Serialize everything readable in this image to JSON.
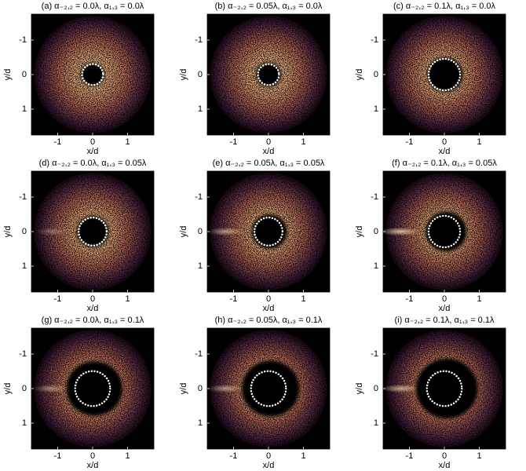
{
  "chart_data": [
    {
      "type": "image",
      "title": "(a)  α₋₂,₂ = 0.0λ, α₁,₃ = 0.0λ",
      "xlabel": "x/d",
      "ylabel": "y/d",
      "xlim": [
        -1.75,
        1.75
      ],
      "ylim": [
        -1.75,
        1.75
      ],
      "y_inverted": true,
      "xticks": [
        -1,
        0,
        1
      ],
      "yticks": [
        -1,
        0,
        1
      ]
    },
    {
      "type": "image",
      "title": "(b)  α₋₂,₂ = 0.05λ, α₁,₃ = 0.0λ",
      "xlabel": "x/d",
      "ylabel": "y/d",
      "xlim": [
        -1.75,
        1.75
      ],
      "ylim": [
        -1.75,
        1.75
      ],
      "y_inverted": true,
      "xticks": [
        -1,
        0,
        1
      ],
      "yticks": [
        -1,
        0,
        1
      ]
    },
    {
      "type": "image",
      "title": "(c)  α₋₂,₂ = 0.1λ, α₁,₃ = 0.0λ",
      "xlabel": "x/d",
      "ylabel": "y/d",
      "xlim": [
        -1.75,
        1.75
      ],
      "ylim": [
        -1.75,
        1.75
      ],
      "y_inverted": true,
      "xticks": [
        -1,
        0,
        1
      ],
      "yticks": [
        -1,
        0,
        1
      ]
    },
    {
      "type": "image",
      "title": "(d)  α₋₂,₂ = 0.0λ, α₁,₃ = 0.05λ",
      "xlabel": "x/d",
      "ylabel": "y/d",
      "xlim": [
        -1.75,
        1.75
      ],
      "ylim": [
        -1.75,
        1.75
      ],
      "y_inverted": true,
      "xticks": [
        -1,
        0,
        1
      ],
      "yticks": [
        -1,
        0,
        1
      ]
    },
    {
      "type": "image",
      "title": "(e)  α₋₂,₂ = 0.05λ, α₁,₃ = 0.05λ",
      "xlabel": "x/d",
      "ylabel": "y/d",
      "xlim": [
        -1.75,
        1.75
      ],
      "ylim": [
        -1.75,
        1.75
      ],
      "y_inverted": true,
      "xticks": [
        -1,
        0,
        1
      ],
      "yticks": [
        -1,
        0,
        1
      ]
    },
    {
      "type": "image",
      "title": "(f)  α₋₂,₂ = 0.1λ, α₁,₃ = 0.05λ",
      "xlabel": "x/d",
      "ylabel": "y/d",
      "xlim": [
        -1.75,
        1.75
      ],
      "ylim": [
        -1.75,
        1.75
      ],
      "y_inverted": true,
      "xticks": [
        -1,
        0,
        1
      ],
      "yticks": [
        -1,
        0,
        1
      ]
    },
    {
      "type": "image",
      "title": "(g)  α₋₂,₂ = 0.0λ, α₁,₃ = 0.1λ",
      "xlabel": "x/d",
      "ylabel": "y/d",
      "xlim": [
        -1.75,
        1.75
      ],
      "ylim": [
        -1.75,
        1.75
      ],
      "y_inverted": true,
      "xticks": [
        -1,
        0,
        1
      ],
      "yticks": [
        -1,
        0,
        1
      ]
    },
    {
      "type": "image",
      "title": "(h)  α₋₂,₂ = 0.05λ, α₁,₃ = 0.1λ",
      "xlabel": "x/d",
      "ylabel": "y/d",
      "xlim": [
        -1.75,
        1.75
      ],
      "ylim": [
        -1.75,
        1.75
      ],
      "y_inverted": true,
      "xticks": [
        -1,
        0,
        1
      ],
      "yticks": [
        -1,
        0,
        1
      ]
    },
    {
      "type": "image",
      "title": "(i)  α₋₂,₂ = 0.1λ, α₁,₃ = 0.1λ",
      "xlabel": "x/d",
      "ylabel": "y/d",
      "xlim": [
        -1.75,
        1.75
      ],
      "ylim": [
        -1.75,
        1.75
      ],
      "y_inverted": true,
      "xticks": [
        -1,
        0,
        1
      ],
      "yticks": [
        -1,
        0,
        1
      ]
    }
  ]
}
